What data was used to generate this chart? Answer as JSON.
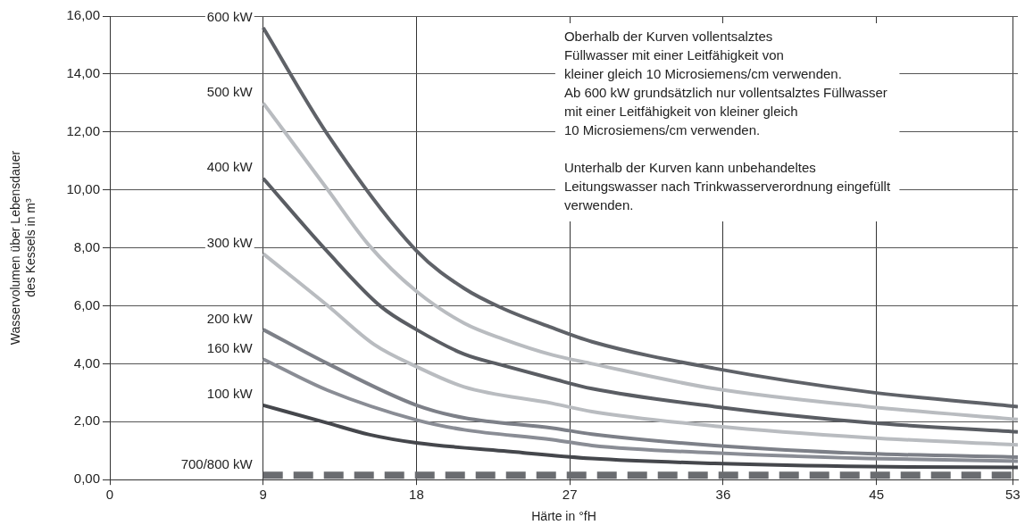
{
  "chart_data": {
    "type": "line",
    "xlabel": "Härte in °fH",
    "ylabel": "Wasservolumen über Lebensdauer\ndes Kessels in m³",
    "xlim": [
      0,
      53.3
    ],
    "xticks": [
      0,
      9,
      18,
      27,
      36,
      45,
      53
    ],
    "ylim": [
      0,
      16
    ],
    "yticks": [
      {
        "value": 0,
        "label": "0,00"
      },
      {
        "value": 2,
        "label": "2,00"
      },
      {
        "value": 4,
        "label": "4,00"
      },
      {
        "value": 6,
        "label": "6,00"
      },
      {
        "value": 8,
        "label": "8,00"
      },
      {
        "value": 10,
        "label": "10,00"
      },
      {
        "value": 12,
        "label": "12,00"
      },
      {
        "value": 14,
        "label": "14,00"
      },
      {
        "value": 16,
        "label": "16,00"
      }
    ],
    "grid": true,
    "legend": false,
    "marker": "none",
    "line_style": "solid",
    "annotations": [
      "Oberhalb der Kurven vollentsalztes\nFüllwasser mit einer Leitfähigkeit von\nkleiner gleich 10 Microsiemens/cm verwenden.\nAb 600 kW grundsätzlich nur vollentsalztes Füllwasser\nmit einer Leitfähigkeit von kleiner gleich\n10 Microsiemens/cm verwenden.",
      "Unterhalb der Kurven kann unbehandeltes\nLeitungswasser nach Trinkwasserverordnung eingefüllt\nverwenden."
    ],
    "series": [
      {
        "name": "600 kW",
        "color": "#5f6268",
        "x": [
          9,
          12.8,
          18,
          20.8,
          23.1,
          25.7,
          28.3,
          35.5,
          44.5,
          53.3
        ],
        "values": [
          15.6,
          11.9,
          7.9,
          6.6,
          5.9,
          5.3,
          4.76,
          3.84,
          3.03,
          2.52
        ]
      },
      {
        "name": "500 kW",
        "color": "#b9bcc0",
        "x": [
          9,
          12.8,
          15.2,
          18,
          20.8,
          23.1,
          26,
          28.3,
          35.5,
          44.5,
          53.3
        ],
        "values": [
          13.0,
          10.0,
          8.1,
          6.5,
          5.4,
          4.85,
          4.3,
          4.0,
          3.14,
          2.52,
          2.08
        ]
      },
      {
        "name": "400 kW",
        "color": "#5a5d63",
        "x": [
          9,
          12.8,
          15.9,
          18,
          20.8,
          23.1,
          26,
          28.3,
          35.5,
          44.5,
          53.3
        ],
        "values": [
          10.4,
          7.85,
          5.98,
          5.18,
          4.33,
          3.94,
          3.48,
          3.14,
          2.52,
          1.97,
          1.65
        ]
      },
      {
        "name": "300 kW",
        "color": "#b9bcc0",
        "x": [
          9,
          12.8,
          15.5,
          18,
          20.8,
          26,
          28.3,
          35.5,
          44.5,
          53.3
        ],
        "values": [
          7.8,
          6.0,
          4.67,
          3.9,
          3.2,
          2.63,
          2.35,
          1.85,
          1.45,
          1.2
        ]
      },
      {
        "name": "200 kW",
        "color": "#7d8088",
        "x": [
          9,
          12.8,
          18,
          20.8,
          26,
          28.3,
          35.5,
          44.5,
          53.3
        ],
        "values": [
          5.18,
          4.0,
          2.57,
          2.13,
          1.78,
          1.57,
          1.18,
          0.9,
          0.78
        ]
      },
      {
        "name": "160 kW",
        "color": "#8a8d95",
        "x": [
          9,
          12.8,
          18,
          20.8,
          26,
          28.3,
          35.5,
          44.5,
          53.3
        ],
        "values": [
          4.16,
          3.08,
          2.06,
          1.72,
          1.38,
          1.18,
          0.92,
          0.73,
          0.64
        ]
      },
      {
        "name": "100 kW",
        "color": "#45474c",
        "x": [
          9,
          12.8,
          15.2,
          18,
          23.1,
          28.3,
          35.5,
          44.5,
          53.3
        ],
        "values": [
          2.57,
          1.95,
          1.56,
          1.27,
          0.99,
          0.73,
          0.56,
          0.45,
          0.42
        ]
      },
      {
        "name": "700/800 kW",
        "color": "#6a6c70",
        "line_style": "dashed",
        "x": [
          9,
          53.3
        ],
        "values": [
          0.15,
          0.15
        ]
      }
    ]
  }
}
